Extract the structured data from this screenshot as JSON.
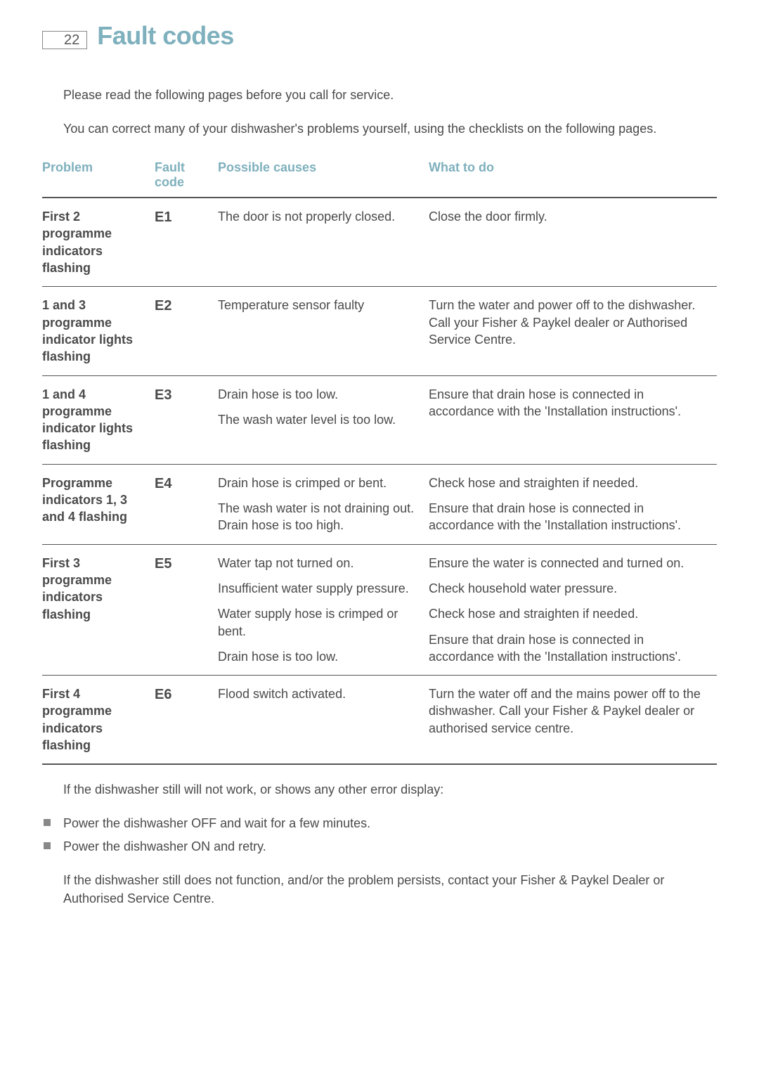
{
  "page_number": "22",
  "title": "Fault codes",
  "intro": [
    "Please read the following pages before you call for service.",
    "You can correct many of your dishwasher's problems yourself, using the checklists on the following pages."
  ],
  "columns": {
    "problem": "Problem",
    "code": "Fault code",
    "cause": "Possible causes",
    "action": "What to do"
  },
  "rows": [
    {
      "problem": "First 2 programme indicators flashing",
      "code": "E1",
      "causes": [
        "The door is not properly closed."
      ],
      "actions": [
        "Close the door firmly."
      ]
    },
    {
      "problem": "1 and 3 programme indicator lights flashing",
      "code": "E2",
      "causes": [
        "Temperature sensor faulty"
      ],
      "actions": [
        "Turn the water and power off to the dishwasher.  Call your Fisher & Paykel dealer or Authorised Service Centre."
      ]
    },
    {
      "problem": "1 and 4 programme indicator lights flashing",
      "code": "E3",
      "causes": [
        "Drain hose is too low.",
        "The wash water level is too low."
      ],
      "actions": [
        "Ensure that drain hose is connected in accordance with the 'Installation instructions'."
      ]
    },
    {
      "problem": "Programme indicators 1, 3 and 4 flashing",
      "code": "E4",
      "causes": [
        "Drain hose is crimped or bent.",
        "The wash water is not draining out. Drain hose is too high."
      ],
      "actions": [
        "Check hose and straighten if needed.",
        "Ensure that drain hose is connected in accordance with the 'Installation instructions'."
      ]
    },
    {
      "problem": "First 3 programme indicators flashing",
      "code": "E5",
      "causes": [
        "Water tap not turned on.",
        "Insufficient water supply pressure.",
        "Water supply hose is crimped or bent.",
        "Drain hose is too low."
      ],
      "actions": [
        "Ensure the water is connected and turned on.",
        "Check household water pressure.",
        "Check hose and straighten if needed.",
        "Ensure that drain hose is connected in accordance with the 'Installation instructions'."
      ]
    },
    {
      "problem": "First 4 programme indicators flashing",
      "code": "E6",
      "causes": [
        "Flood switch activated."
      ],
      "actions": [
        "Turn the water off and the mains power off to the dishwasher.  Call your Fisher & Paykel dealer or authorised service centre."
      ]
    }
  ],
  "outro_lead": "If the dishwasher still will not work, or shows any other error display:",
  "outro_bullets": [
    "Power the dishwasher OFF and wait for a few minutes.",
    "Power the dishwasher ON and retry."
  ],
  "outro_tail": "If the dishwasher still does not function, and/or the problem persists, contact your Fisher & Paykel Dealer or Authorised Service Centre."
}
